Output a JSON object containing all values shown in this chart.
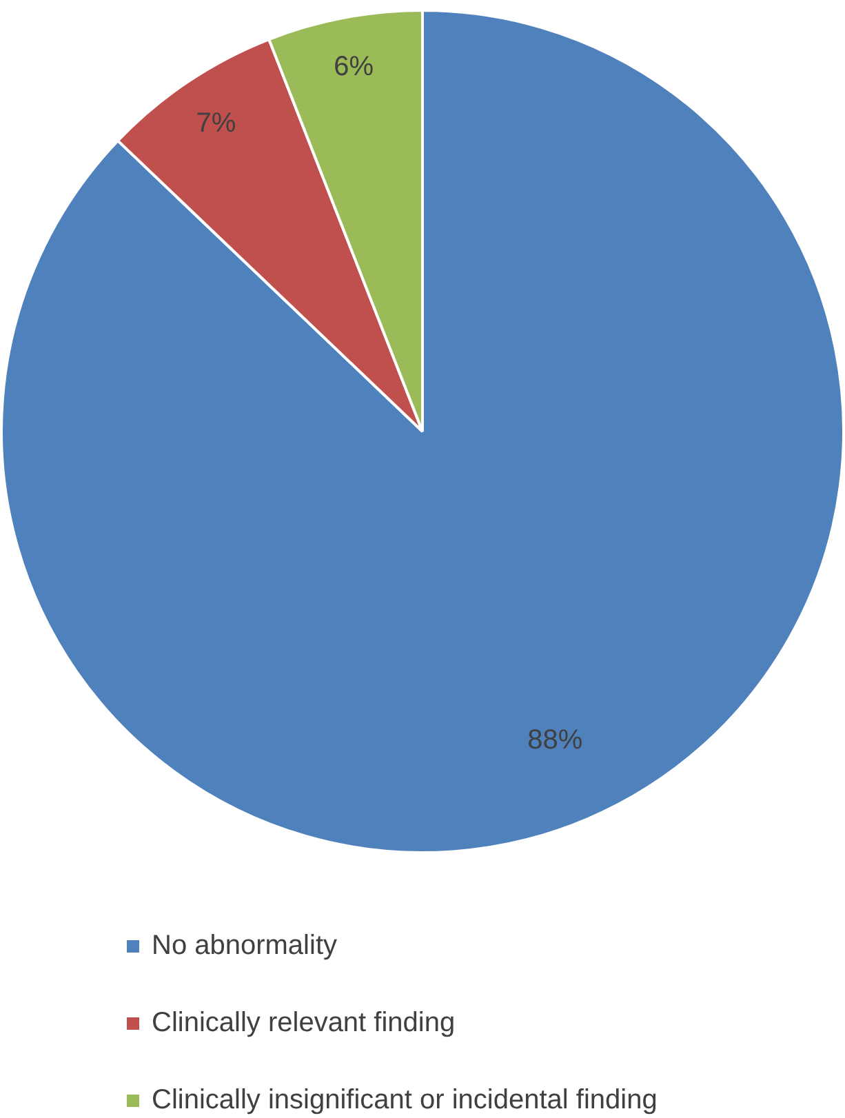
{
  "chart_data": {
    "type": "pie",
    "categories": [
      "No abnormality",
      "Clinically relevant finding",
      "Clinically insignificant or incidental finding"
    ],
    "values": [
      88,
      7,
      6
    ],
    "colors": [
      "#4f81bd",
      "#c0504d",
      "#9bbb59"
    ],
    "value_labels": [
      "88%",
      "7%",
      "6%"
    ],
    "legend": "bottom"
  }
}
